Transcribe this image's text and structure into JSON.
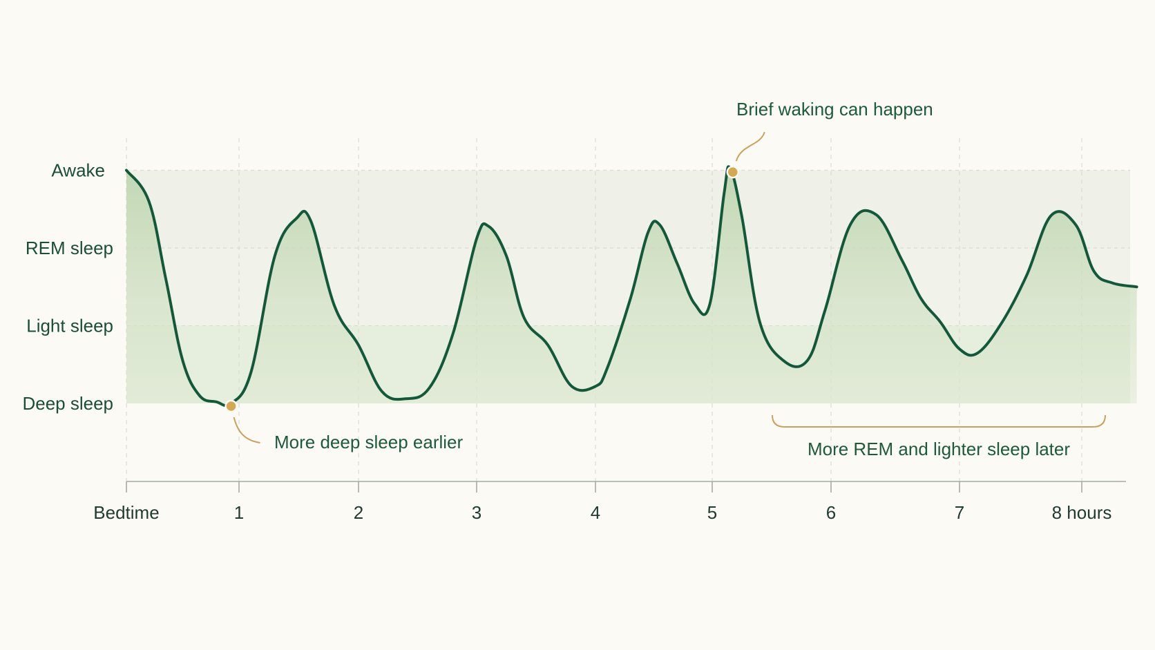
{
  "chart_data": {
    "type": "area",
    "title": "",
    "xlabel": "",
    "ylabel": "",
    "x_ticks": [
      {
        "value": 0,
        "label": "Bedtime"
      },
      {
        "value": 1,
        "label": "1"
      },
      {
        "value": 2,
        "label": "2"
      },
      {
        "value": 3,
        "label": "3"
      },
      {
        "value": 4,
        "label": "4"
      },
      {
        "value": 5,
        "label": "5"
      },
      {
        "value": 6,
        "label": "6"
      },
      {
        "value": 7,
        "label": "7"
      },
      {
        "value": 8,
        "label": "8 hours"
      }
    ],
    "xlim": [
      0,
      8.4
    ],
    "y_levels": [
      "Deep sleep",
      "Light sleep",
      "REM sleep",
      "Awake"
    ],
    "ylim": [
      0,
      3
    ],
    "series": [
      {
        "points": [
          [
            0.0,
            3.0
          ],
          [
            0.2,
            2.6
          ],
          [
            0.35,
            1.6
          ],
          [
            0.5,
            0.55
          ],
          [
            0.65,
            0.1
          ],
          [
            0.8,
            0.02
          ],
          [
            0.93,
            0.0
          ],
          [
            1.1,
            0.4
          ],
          [
            1.3,
            1.9
          ],
          [
            1.48,
            2.38
          ],
          [
            1.6,
            2.35
          ],
          [
            1.8,
            1.25
          ],
          [
            2.0,
            0.75
          ],
          [
            2.2,
            0.15
          ],
          [
            2.4,
            0.06
          ],
          [
            2.6,
            0.2
          ],
          [
            2.8,
            0.9
          ],
          [
            3.0,
            2.12
          ],
          [
            3.1,
            2.28
          ],
          [
            3.25,
            1.9
          ],
          [
            3.4,
            1.1
          ],
          [
            3.6,
            0.75
          ],
          [
            3.8,
            0.22
          ],
          [
            4.0,
            0.22
          ],
          [
            4.1,
            0.45
          ],
          [
            4.3,
            1.35
          ],
          [
            4.45,
            2.2
          ],
          [
            4.55,
            2.3
          ],
          [
            4.7,
            1.8
          ],
          [
            4.85,
            1.28
          ],
          [
            4.98,
            1.28
          ],
          [
            5.1,
            2.7
          ],
          [
            5.15,
            3.03
          ],
          [
            5.25,
            2.4
          ],
          [
            5.4,
            1.05
          ],
          [
            5.6,
            0.55
          ],
          [
            5.8,
            0.55
          ],
          [
            5.95,
            1.2
          ],
          [
            6.15,
            2.3
          ],
          [
            6.35,
            2.43
          ],
          [
            6.55,
            1.85
          ],
          [
            6.7,
            1.35
          ],
          [
            6.85,
            1.05
          ],
          [
            7.0,
            0.7
          ],
          [
            7.15,
            0.65
          ],
          [
            7.35,
            1.05
          ],
          [
            7.55,
            1.65
          ],
          [
            7.75,
            2.42
          ],
          [
            7.95,
            2.3
          ],
          [
            8.1,
            1.7
          ],
          [
            8.25,
            1.55
          ],
          [
            8.45,
            1.5
          ]
        ]
      }
    ],
    "bands": [
      {
        "from": 0,
        "to": 1,
        "color": "#e6eedd"
      },
      {
        "from": 1,
        "to": 2,
        "color": "#f1f2ea"
      },
      {
        "from": 2,
        "to": 3,
        "color": "#eff1e8"
      }
    ],
    "annotations": [
      {
        "text": "More deep sleep earlier",
        "x": 0.93,
        "y": 0.0
      },
      {
        "text": "Brief waking can happen",
        "x": 5.15,
        "y": 3.03
      },
      {
        "text": "More REM and lighter sleep later",
        "x_range": [
          5.5,
          8.2
        ]
      }
    ],
    "grid": true,
    "colors": {
      "line": "#12593a",
      "fill": "#a9cc9a",
      "marker": "#d3a850",
      "annotation_line": "#c9a15a",
      "axis": "#a5aaa3",
      "grid": "#d9dcd4"
    }
  }
}
